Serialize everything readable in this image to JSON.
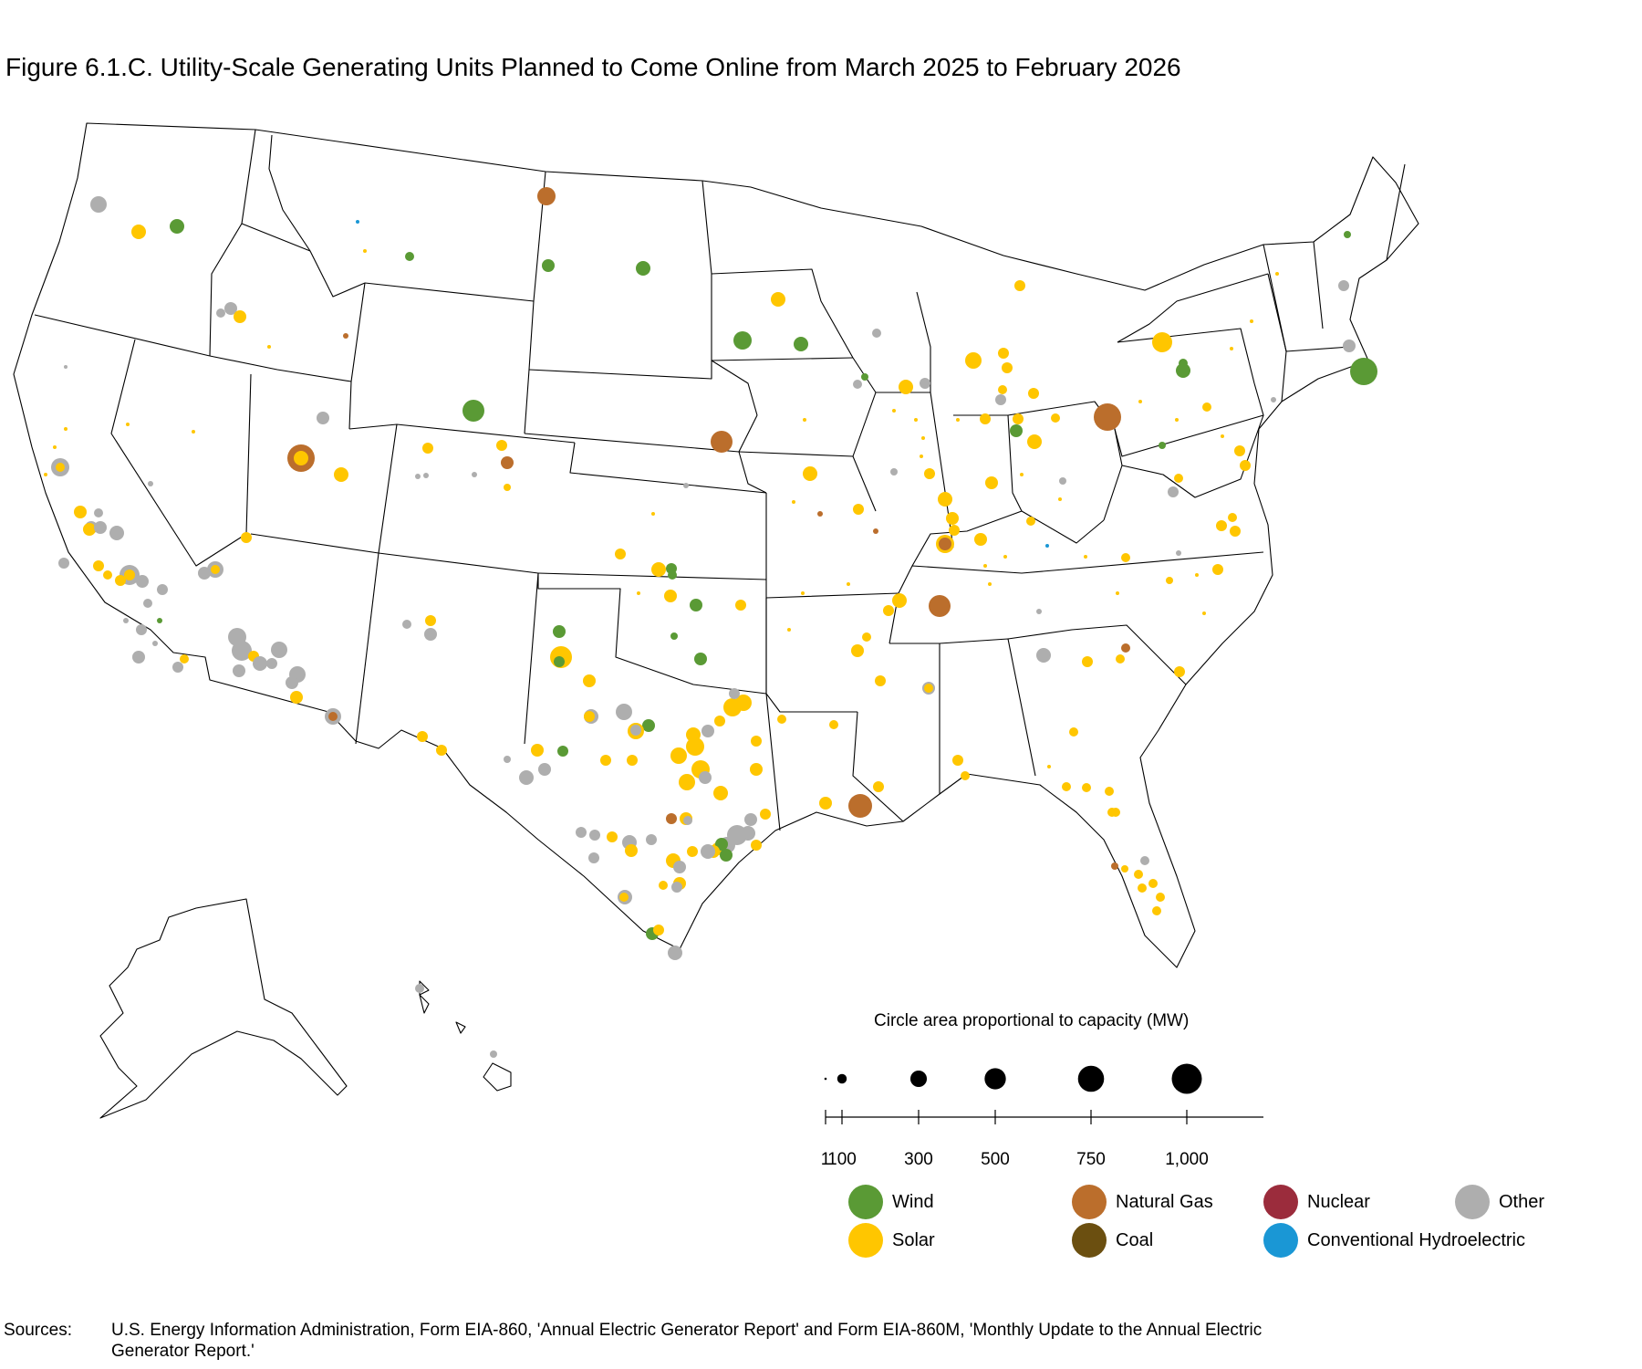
{
  "title": "Figure 6.1.C. Utility-Scale Generating Units Planned to Come Online from March 2025 to February 2026",
  "colors": {
    "Wind": "#5a9a35",
    "Solar": "#ffc600",
    "Natural Gas": "#bb6e2c",
    "Coal": "#6b4f10",
    "Nuclear": "#9b2c3c",
    "Conventional Hydroelectric": "#1a97d5",
    "Other": "#aeaeae"
  },
  "size_legend": {
    "caption": "Circle area proportional to capacity (MW)",
    "ticks": [
      {
        "value": 1,
        "label": "1"
      },
      {
        "value": 100,
        "label": "100"
      },
      {
        "value": 300,
        "label": "300"
      },
      {
        "value": 500,
        "label": "500"
      },
      {
        "value": 750,
        "label": "750"
      },
      {
        "value": 1000,
        "label": "1,000"
      }
    ]
  },
  "type_legend": [
    {
      "label": "Wind",
      "key": "Wind"
    },
    {
      "label": "Natural Gas",
      "key": "Natural Gas"
    },
    {
      "label": "Nuclear",
      "key": "Nuclear"
    },
    {
      "label": "Other",
      "key": "Other"
    },
    {
      "label": "Solar",
      "key": "Solar"
    },
    {
      "label": "Coal",
      "key": "Coal"
    },
    {
      "label": "Conventional Hydroelectric",
      "key": "Conventional Hydroelectric"
    }
  ],
  "sources": {
    "label": "Sources:",
    "text": "U.S. Energy Information Administration, Form EIA-860, 'Annual Electric Generator Report' and Form EIA-860M, 'Monthly Update to the Annual Electric Generator Report.'"
  }
}
